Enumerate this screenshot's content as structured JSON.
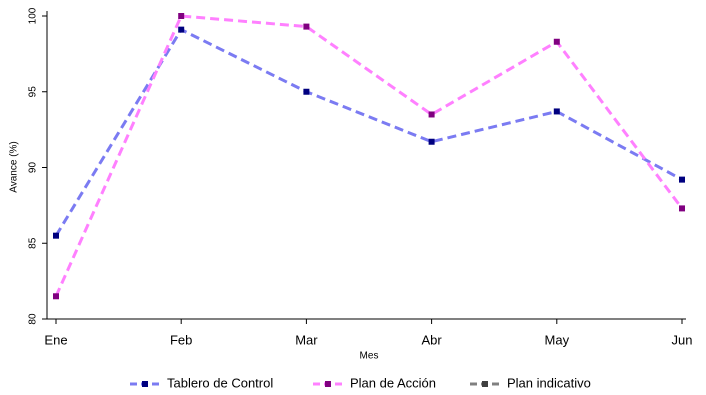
{
  "chart_data": {
    "type": "line",
    "x_label": "Mes",
    "y_label": "Avance (%)",
    "categories": [
      "Ene",
      "Feb",
      "Mar",
      "Abr",
      "May",
      "Jun"
    ],
    "series": [
      {
        "name": "Tablero de Control",
        "color": "#7b7bf2",
        "marker_color": "#00007f",
        "values": [
          85.5,
          99.1,
          95.0,
          91.7,
          93.7,
          89.2
        ]
      },
      {
        "name": "Plan de Acción",
        "color": "#ff80ff",
        "marker_color": "#800080",
        "values": [
          81.5,
          100,
          99.3,
          93.5,
          98.3,
          87.3
        ]
      },
      {
        "name": "Plan indicativo",
        "color": "#808080",
        "marker_color": "#404040",
        "values": [
          null,
          null,
          null,
          null,
          null,
          null
        ]
      }
    ],
    "ylim": [
      80,
      100
    ],
    "yticks": [
      80,
      85,
      90,
      95,
      100
    ],
    "grid": false,
    "legend": "bottom"
  }
}
